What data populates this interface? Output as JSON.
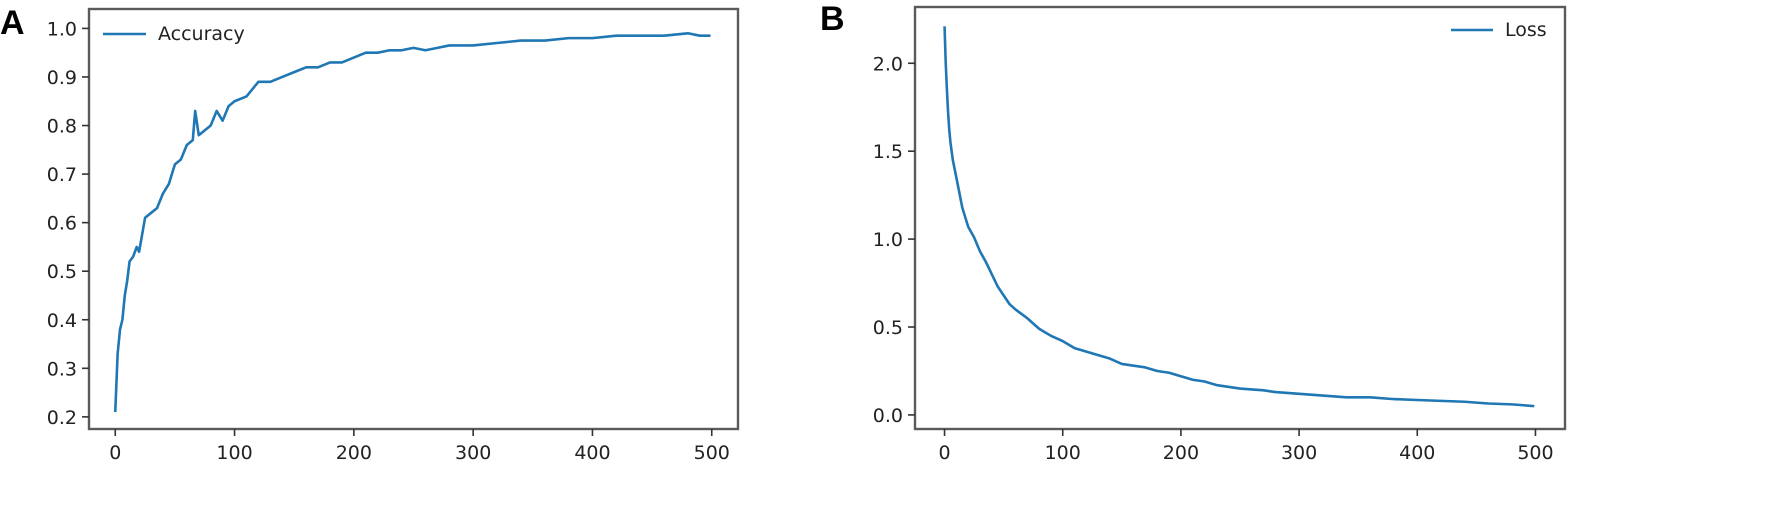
{
  "colors": {
    "series": "#1f77b4"
  },
  "chart_data": [
    {
      "type": "line",
      "panel_label": "A",
      "title": "",
      "xlabel": "",
      "ylabel": "",
      "xlim": [
        -22,
        522
      ],
      "ylim": [
        0.175,
        1.04
      ],
      "grid": false,
      "legend_position": "upper-left",
      "x_ticks": [
        0,
        100,
        200,
        300,
        400,
        500
      ],
      "x_tick_labels": [
        "0",
        "100",
        "200",
        "300",
        "400",
        "500"
      ],
      "y_ticks": [
        0.2,
        0.3,
        0.4,
        0.5,
        0.6,
        0.7,
        0.8,
        0.9,
        1.0
      ],
      "y_tick_labels": [
        "0.2",
        "0.3",
        "0.4",
        "0.5",
        "0.6",
        "0.7",
        "0.8",
        "0.9",
        "1.0"
      ],
      "series": [
        {
          "name": "Accuracy",
          "x": [
            0,
            2,
            4,
            6,
            8,
            10,
            12,
            15,
            18,
            20,
            25,
            30,
            35,
            40,
            45,
            50,
            55,
            60,
            65,
            67,
            70,
            75,
            80,
            85,
            90,
            95,
            100,
            110,
            120,
            130,
            140,
            150,
            160,
            170,
            180,
            190,
            200,
            210,
            220,
            230,
            240,
            250,
            260,
            270,
            280,
            290,
            300,
            320,
            340,
            360,
            380,
            400,
            420,
            440,
            460,
            480,
            490,
            499
          ],
          "values": [
            0.21,
            0.33,
            0.38,
            0.4,
            0.45,
            0.48,
            0.52,
            0.53,
            0.55,
            0.54,
            0.61,
            0.62,
            0.63,
            0.66,
            0.68,
            0.72,
            0.73,
            0.76,
            0.77,
            0.83,
            0.78,
            0.79,
            0.8,
            0.83,
            0.81,
            0.84,
            0.85,
            0.86,
            0.89,
            0.89,
            0.9,
            0.91,
            0.92,
            0.92,
            0.93,
            0.93,
            0.94,
            0.95,
            0.95,
            0.955,
            0.955,
            0.96,
            0.955,
            0.96,
            0.965,
            0.965,
            0.965,
            0.97,
            0.975,
            0.975,
            0.98,
            0.98,
            0.985,
            0.985,
            0.985,
            0.99,
            0.985,
            0.985
          ]
        }
      ]
    },
    {
      "type": "line",
      "panel_label": "B",
      "title": "",
      "xlabel": "",
      "ylabel": "",
      "xlim": [
        -25,
        525
      ],
      "ylim": [
        -0.08,
        2.32
      ],
      "grid": false,
      "legend_position": "upper-right",
      "x_ticks": [
        0,
        100,
        200,
        300,
        400,
        500
      ],
      "x_tick_labels": [
        "0",
        "100",
        "200",
        "300",
        "400",
        "500"
      ],
      "y_ticks": [
        0.0,
        0.5,
        1.0,
        1.5,
        2.0
      ],
      "y_tick_labels": [
        "0.0",
        "0.5",
        "1.0",
        "1.5",
        "2.0"
      ],
      "series": [
        {
          "name": "Loss",
          "x": [
            0,
            1,
            2,
            3,
            4,
            5,
            7,
            10,
            15,
            20,
            25,
            30,
            35,
            40,
            45,
            50,
            55,
            60,
            70,
            80,
            90,
            100,
            110,
            120,
            130,
            140,
            150,
            160,
            170,
            180,
            190,
            200,
            210,
            220,
            230,
            240,
            250,
            260,
            270,
            280,
            290,
            300,
            320,
            340,
            360,
            380,
            400,
            420,
            440,
            460,
            480,
            490,
            499
          ],
          "values": [
            2.21,
            2.0,
            1.85,
            1.72,
            1.62,
            1.55,
            1.45,
            1.35,
            1.18,
            1.07,
            1.01,
            0.93,
            0.87,
            0.8,
            0.73,
            0.68,
            0.63,
            0.6,
            0.55,
            0.49,
            0.45,
            0.42,
            0.38,
            0.36,
            0.34,
            0.32,
            0.29,
            0.28,
            0.27,
            0.25,
            0.24,
            0.22,
            0.2,
            0.19,
            0.17,
            0.16,
            0.15,
            0.145,
            0.14,
            0.13,
            0.125,
            0.12,
            0.11,
            0.1,
            0.1,
            0.09,
            0.085,
            0.08,
            0.075,
            0.065,
            0.06,
            0.055,
            0.05
          ]
        }
      ]
    }
  ]
}
